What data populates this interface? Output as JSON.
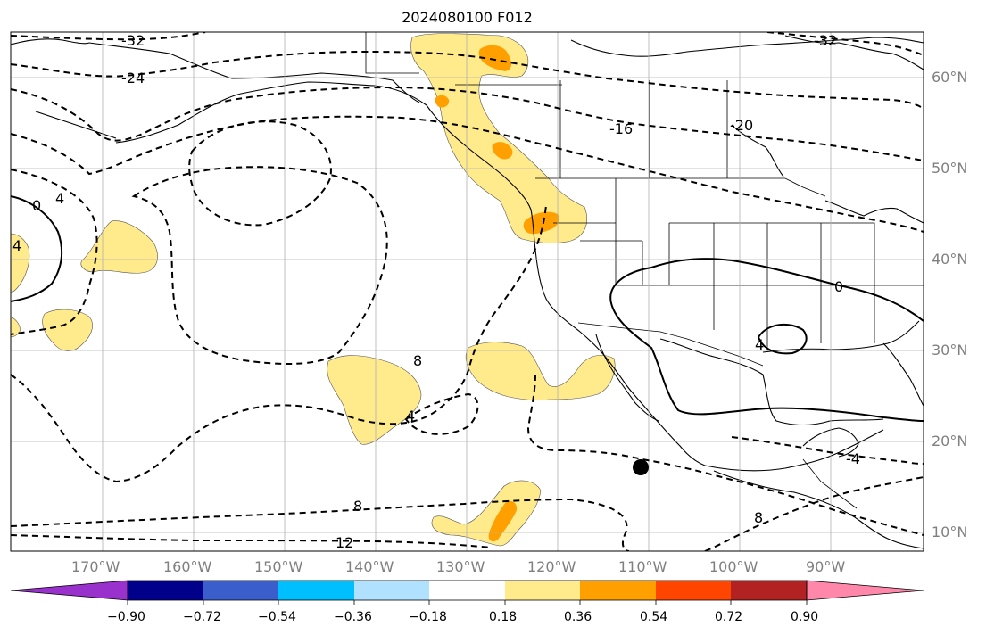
{
  "title": "2024080100 F012",
  "map": {
    "lon_labels": [
      "170°W",
      "160°W",
      "150°W",
      "140°W",
      "130°W",
      "120°W",
      "110°W",
      "100°W",
      "90°W"
    ],
    "lat_labels": [
      "60°N",
      "50°N",
      "40°N",
      "30°N",
      "20°N",
      "10°N"
    ],
    "contour_labels": [
      "-32",
      "-24",
      "-32",
      "-16",
      "-20",
      "0",
      "4",
      "4",
      "0",
      "4",
      "8",
      "4",
      "8",
      "12",
      "-4",
      "8"
    ],
    "colors": {
      "contour": "#000000",
      "coast": "#000000",
      "grid": "#b0b0b0",
      "shade_low": "#ffea8c",
      "shade_mid": "#ffa000",
      "marker": "#000000"
    }
  },
  "colorbar": {
    "ticks": [
      "−0.90",
      "−0.72",
      "−0.54",
      "−0.36",
      "−0.18",
      "0.18",
      "0.36",
      "0.54",
      "0.72",
      "0.90"
    ],
    "colors": [
      "#9932cc",
      "#00008b",
      "#3a5fcd",
      "#00bfff",
      "#b0e2ff",
      "#ffffff",
      "#ffea8c",
      "#ffa000",
      "#ff4500",
      "#b22222",
      "#ff88aa"
    ]
  }
}
